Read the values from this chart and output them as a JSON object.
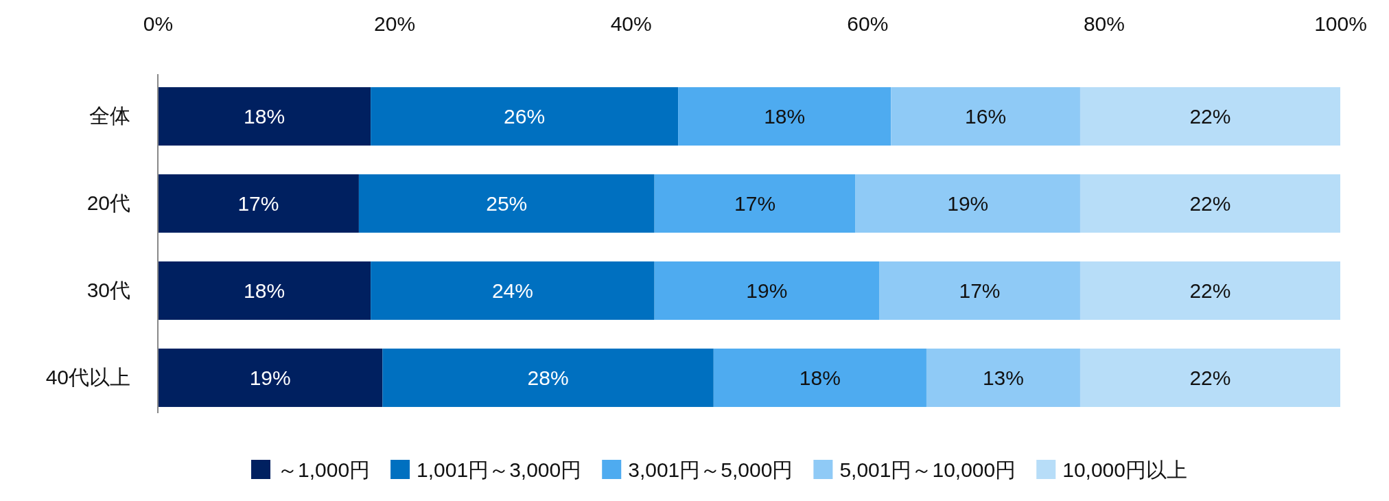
{
  "chart_data": {
    "type": "bar",
    "orientation": "horizontal",
    "stacked": true,
    "categories": [
      "全体",
      "20代",
      "30代",
      "40代以上"
    ],
    "series": [
      {
        "name": "～1,000円",
        "color": "#002060",
        "values": [
          18,
          17,
          18,
          19
        ],
        "value_labels": [
          "18%",
          "17%",
          "18%",
          "19%"
        ]
      },
      {
        "name": "1,001円～3,000円",
        "color": "#0070c0",
        "values": [
          26,
          25,
          24,
          28
        ],
        "value_labels": [
          "26%",
          "25%",
          "24%",
          "28%"
        ]
      },
      {
        "name": "3,001円～5,000円",
        "color": "#4eabf0",
        "values": [
          18,
          17,
          19,
          18
        ],
        "value_labels": [
          "18%",
          "17%",
          "19%",
          "18%"
        ]
      },
      {
        "name": "5,001円～10,000円",
        "color": "#8fcaf6",
        "values": [
          16,
          19,
          17,
          13
        ],
        "value_labels": [
          "16%",
          "19%",
          "17%",
          "13%"
        ]
      },
      {
        "name": "10,000円以上",
        "color": "#b7ddf8",
        "values": [
          22,
          22,
          22,
          22
        ],
        "value_labels": [
          "22%",
          "22%",
          "22%",
          "22%"
        ]
      }
    ],
    "xlim": [
      0,
      100
    ],
    "xticks": [
      {
        "value": 0,
        "label": "0%"
      },
      {
        "value": 20,
        "label": "20%"
      },
      {
        "value": 40,
        "label": "40%"
      },
      {
        "value": 60,
        "label": "60%"
      },
      {
        "value": 80,
        "label": "80%"
      },
      {
        "value": 100,
        "label": "100%"
      }
    ],
    "legend": "bottom",
    "grid": false
  }
}
